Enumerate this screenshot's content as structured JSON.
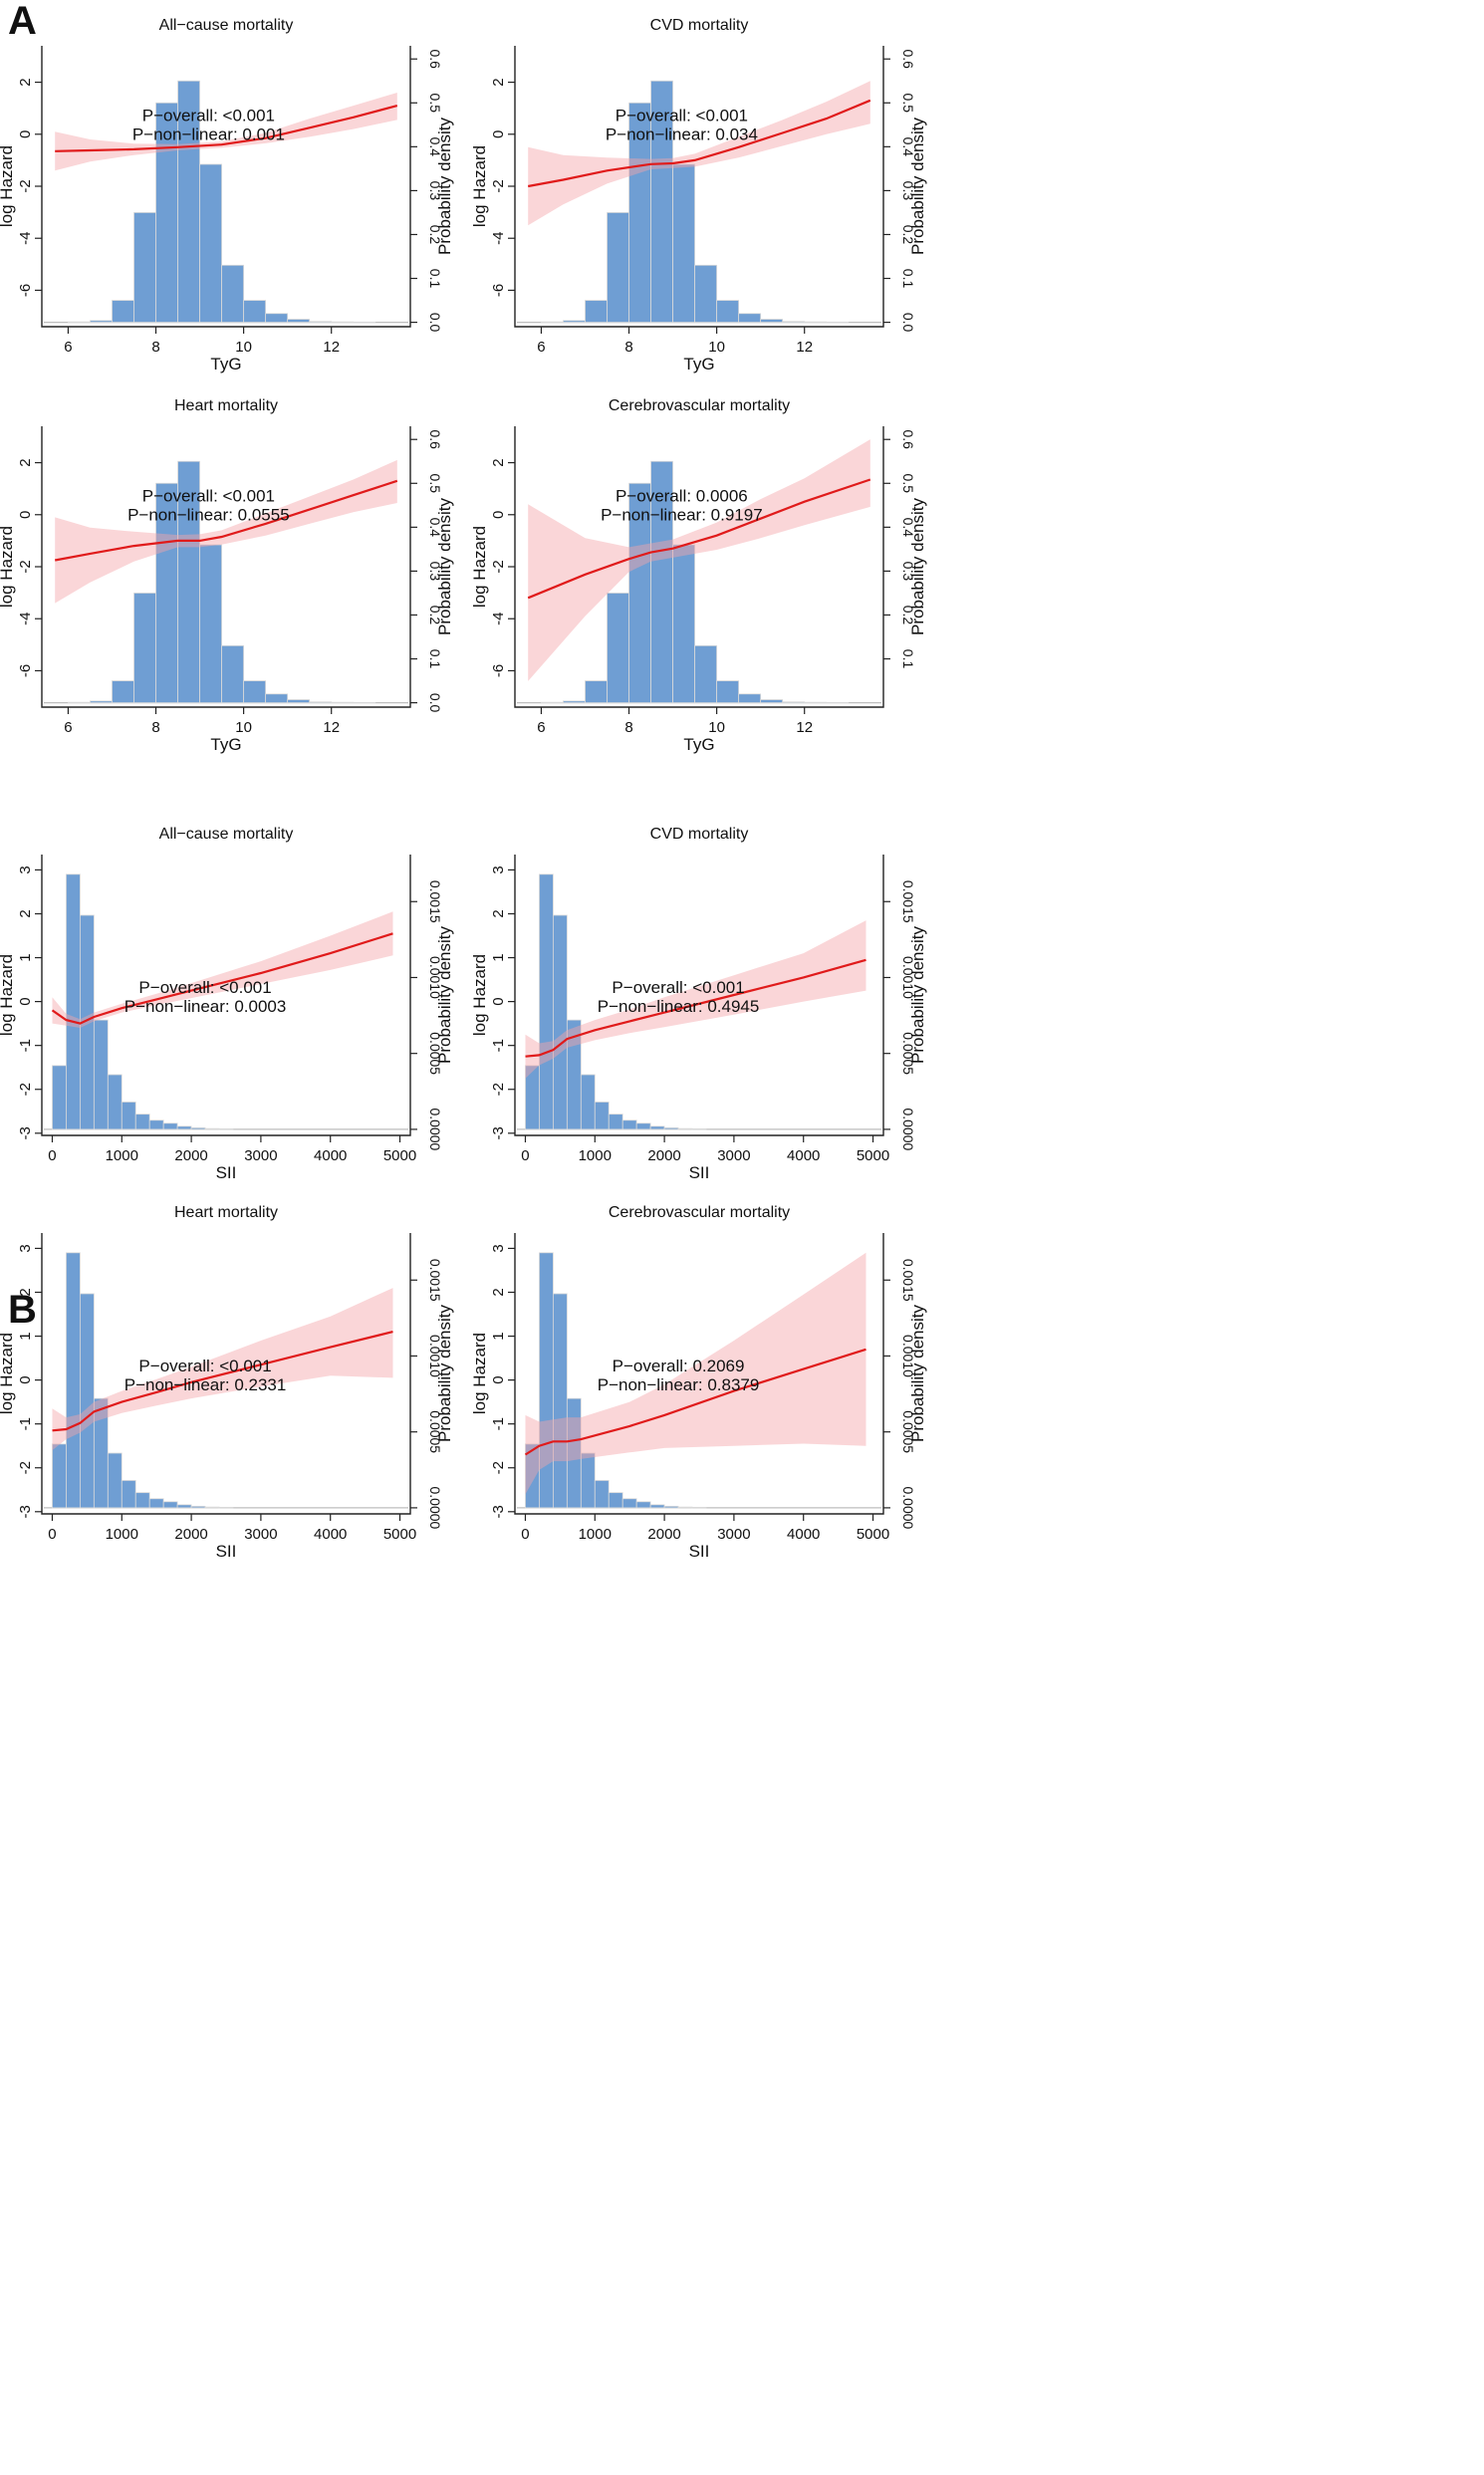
{
  "panels": [
    {
      "letter": "A",
      "xlabel": "TyG"
    },
    {
      "letter": "B",
      "xlabel": "SII"
    }
  ],
  "chart_data": [
    {
      "type": "line",
      "panel": "A",
      "title": "All−cause mortality",
      "xlabel": "TyG",
      "ylabel": "log Hazard",
      "y2label": "Probability density",
      "xlim": [
        5.4,
        13.8
      ],
      "xticks": [
        6,
        8,
        10,
        12
      ],
      "ylim": [
        -7.4,
        3.4
      ],
      "yticks": [
        -6,
        -4,
        -2,
        0,
        2
      ],
      "y2lim": [
        -0.01,
        0.63
      ],
      "y2ticks": [
        "0.0",
        "0.1",
        "0.2",
        "0.3",
        "0.4",
        "0.5",
        "0.6"
      ],
      "histogram": {
        "bin_width": 0.5,
        "bin_starts": [
          6.0,
          6.5,
          7.0,
          7.5,
          8.0,
          8.5,
          9.0,
          9.5,
          10.0,
          10.5,
          11.0,
          11.5,
          12.0,
          12.5
        ],
        "density": [
          0.001,
          0.004,
          0.05,
          0.25,
          0.5,
          0.55,
          0.36,
          0.13,
          0.05,
          0.02,
          0.007,
          0.002,
          0.001,
          0.0005
        ]
      },
      "curve": {
        "x": [
          5.7,
          6.5,
          7.5,
          8.5,
          9.5,
          10.5,
          11.5,
          12.5,
          13.5
        ],
        "y": [
          -0.65,
          -0.62,
          -0.58,
          -0.5,
          -0.4,
          -0.15,
          0.25,
          0.65,
          1.1
        ],
        "lower": [
          -1.4,
          -1.05,
          -0.8,
          -0.62,
          -0.52,
          -0.35,
          -0.1,
          0.2,
          0.55
        ],
        "upper": [
          0.1,
          -0.2,
          -0.36,
          -0.38,
          -0.28,
          0.05,
          0.6,
          1.1,
          1.6
        ]
      },
      "annotations": [
        "P−overall: <0.001",
        "P−non−linear: 0.001"
      ],
      "annotation_anchor": [
        9.2,
        0.5
      ]
    },
    {
      "type": "line",
      "panel": "A",
      "title": "CVD mortality",
      "xlabel": "TyG",
      "ylabel": "log Hazard",
      "y2label": "Probability density",
      "xlim": [
        5.4,
        13.8
      ],
      "xticks": [
        6,
        8,
        10,
        12
      ],
      "ylim": [
        -7.4,
        3.4
      ],
      "yticks": [
        -6,
        -4,
        -2,
        0,
        2
      ],
      "y2lim": [
        -0.01,
        0.63
      ],
      "y2ticks": [
        "0.0",
        "0.1",
        "0.2",
        "0.3",
        "0.4",
        "0.5",
        "0.6"
      ],
      "histogram": {
        "bin_width": 0.5,
        "bin_starts": [
          6.0,
          6.5,
          7.0,
          7.5,
          8.0,
          8.5,
          9.0,
          9.5,
          10.0,
          10.5,
          11.0,
          11.5,
          12.0,
          12.5
        ],
        "density": [
          0.001,
          0.004,
          0.05,
          0.25,
          0.5,
          0.55,
          0.36,
          0.13,
          0.05,
          0.02,
          0.007,
          0.002,
          0.001,
          0.0005
        ]
      },
      "curve": {
        "x": [
          5.7,
          6.5,
          7.5,
          8.5,
          9.0,
          9.5,
          10.5,
          11.5,
          12.5,
          13.5
        ],
        "y": [
          -2.0,
          -1.75,
          -1.4,
          -1.15,
          -1.12,
          -1.0,
          -0.5,
          0.05,
          0.6,
          1.3
        ],
        "lower": [
          -3.5,
          -2.7,
          -1.9,
          -1.35,
          -1.3,
          -1.25,
          -0.9,
          -0.45,
          0.0,
          0.4
        ],
        "upper": [
          -0.5,
          -0.8,
          -0.9,
          -0.95,
          -0.92,
          -0.75,
          -0.1,
          0.55,
          1.25,
          2.05
        ]
      },
      "annotations": [
        "P−overall: <0.001",
        "P−non−linear: 0.034"
      ],
      "annotation_anchor": [
        9.2,
        0.5
      ]
    },
    {
      "type": "line",
      "panel": "A",
      "title": "Heart mortality",
      "xlabel": "TyG",
      "ylabel": "log Hazard",
      "y2label": "Probability density",
      "xlim": [
        5.4,
        13.8
      ],
      "xticks": [
        6,
        8,
        10,
        12
      ],
      "ylim": [
        -7.4,
        3.4
      ],
      "yticks": [
        -6,
        -4,
        -2,
        0,
        2
      ],
      "y2lim": [
        -0.01,
        0.63
      ],
      "y2ticks": [
        "0.0",
        "0.1",
        "0.2",
        "0.3",
        "0.4",
        "0.5",
        "0.6"
      ],
      "histogram": {
        "bin_width": 0.5,
        "bin_starts": [
          6.0,
          6.5,
          7.0,
          7.5,
          8.0,
          8.5,
          9.0,
          9.5,
          10.0,
          10.5,
          11.0,
          11.5,
          12.0,
          12.5
        ],
        "density": [
          0.001,
          0.004,
          0.05,
          0.25,
          0.5,
          0.55,
          0.36,
          0.13,
          0.05,
          0.02,
          0.007,
          0.002,
          0.001,
          0.0005
        ]
      },
      "curve": {
        "x": [
          5.7,
          6.5,
          7.5,
          8.5,
          9.0,
          9.5,
          10.5,
          11.5,
          12.5,
          13.5
        ],
        "y": [
          -1.75,
          -1.5,
          -1.2,
          -1.0,
          -1.0,
          -0.85,
          -0.35,
          0.2,
          0.75,
          1.3
        ],
        "lower": [
          -3.4,
          -2.6,
          -1.8,
          -1.25,
          -1.25,
          -1.15,
          -0.8,
          -0.35,
          0.1,
          0.45
        ],
        "upper": [
          -0.1,
          -0.5,
          -0.65,
          -0.78,
          -0.75,
          -0.6,
          0.05,
          0.7,
          1.35,
          2.1
        ]
      },
      "annotations": [
        "P−overall: <0.001",
        "P−non−linear: 0.0555"
      ],
      "annotation_anchor": [
        9.2,
        0.5
      ]
    },
    {
      "type": "line",
      "panel": "A",
      "title": "Cerebrovascular mortality",
      "xlabel": "TyG",
      "ylabel": "log Hazard",
      "y2label": "Probability density",
      "xlim": [
        5.4,
        13.8
      ],
      "xticks": [
        6,
        8,
        10,
        12
      ],
      "ylim": [
        -7.4,
        3.4
      ],
      "yticks": [
        -6,
        -4,
        -2,
        0,
        2
      ],
      "y2lim": [
        -0.01,
        0.63
      ],
      "y2ticks": [
        "0.1",
        "0.2",
        "0.3",
        "0.4",
        "0.5",
        "0.6"
      ],
      "histogram": {
        "bin_width": 0.5,
        "bin_starts": [
          6.0,
          6.5,
          7.0,
          7.5,
          8.0,
          8.5,
          9.0,
          9.5,
          10.0,
          10.5,
          11.0,
          11.5,
          12.0,
          12.5
        ],
        "density": [
          0.001,
          0.004,
          0.05,
          0.25,
          0.5,
          0.55,
          0.36,
          0.13,
          0.05,
          0.02,
          0.007,
          0.002,
          0.001,
          0.0005
        ]
      },
      "curve": {
        "x": [
          5.7,
          7.0,
          8.0,
          8.5,
          9.0,
          10.0,
          11.0,
          12.0,
          13.5
        ],
        "y": [
          -3.2,
          -2.3,
          -1.7,
          -1.45,
          -1.3,
          -0.8,
          -0.15,
          0.5,
          1.35
        ],
        "lower": [
          -6.4,
          -3.9,
          -2.2,
          -1.8,
          -1.65,
          -1.35,
          -0.9,
          -0.4,
          0.3
        ],
        "upper": [
          0.4,
          -0.9,
          -1.25,
          -1.1,
          -0.95,
          -0.3,
          0.6,
          1.4,
          2.9
        ]
      },
      "annotations": [
        "P−overall: 0.0006",
        "P−non−linear: 0.9197"
      ],
      "annotation_anchor": [
        9.2,
        0.5
      ]
    },
    {
      "type": "line",
      "panel": "B",
      "title": "All−cause mortality",
      "xlabel": "SII",
      "ylabel": "log Hazard",
      "y2label": "Probability density",
      "xlim": [
        -150,
        5150
      ],
      "xticks": [
        0,
        1000,
        2000,
        3000,
        4000,
        5000
      ],
      "ylim": [
        -3.05,
        3.35
      ],
      "yticks": [
        -3,
        -2,
        -1,
        0,
        1,
        2,
        3
      ],
      "y2lim": [
        -4e-05,
        0.00181
      ],
      "y2ticks": [
        "0.0000",
        "0.0005",
        "0.0010",
        "0.0015"
      ],
      "histogram": {
        "bin_width": 200,
        "bin_starts": [
          0,
          200,
          400,
          600,
          800,
          1000,
          1200,
          1400,
          1600,
          1800,
          2000,
          2200,
          2400
        ],
        "density": [
          0.00042,
          0.00168,
          0.00141,
          0.00072,
          0.00036,
          0.00018,
          0.0001,
          6e-05,
          4e-05,
          2e-05,
          1e-05,
          5e-06,
          3e-06
        ]
      },
      "curve": {
        "x": [
          0,
          200,
          400,
          600,
          1000,
          1500,
          2000,
          3000,
          4000,
          4900
        ],
        "y": [
          -0.2,
          -0.42,
          -0.5,
          -0.35,
          -0.15,
          0.05,
          0.25,
          0.65,
          1.1,
          1.55
        ],
        "lower": [
          -0.5,
          -0.55,
          -0.6,
          -0.45,
          -0.25,
          -0.08,
          0.08,
          0.4,
          0.72,
          1.05
        ],
        "upper": [
          0.1,
          -0.28,
          -0.4,
          -0.25,
          -0.05,
          0.18,
          0.42,
          0.92,
          1.5,
          2.05
        ]
      },
      "annotations": [
        "P−overall: <0.001",
        "P−non−linear: 0.0003"
      ],
      "annotation_anchor": [
        2200,
        0.2
      ]
    },
    {
      "type": "line",
      "panel": "B",
      "title": "CVD mortality",
      "xlabel": "SII",
      "ylabel": "log Hazard",
      "y2label": "Probability density",
      "xlim": [
        -150,
        5150
      ],
      "xticks": [
        0,
        1000,
        2000,
        3000,
        4000,
        5000
      ],
      "ylim": [
        -3.05,
        3.35
      ],
      "yticks": [
        -3,
        -2,
        -1,
        0,
        1,
        2,
        3
      ],
      "y2lim": [
        -4e-05,
        0.00181
      ],
      "y2ticks": [
        "0.0000",
        "0.0005",
        "0.0010",
        "0.0015"
      ],
      "histogram": {
        "bin_width": 200,
        "bin_starts": [
          0,
          200,
          400,
          600,
          800,
          1000,
          1200,
          1400,
          1600,
          1800,
          2000,
          2200,
          2400
        ],
        "density": [
          0.00042,
          0.00168,
          0.00141,
          0.00072,
          0.00036,
          0.00018,
          0.0001,
          6e-05,
          4e-05,
          2e-05,
          1e-05,
          5e-06,
          3e-06
        ]
      },
      "curve": {
        "x": [
          0,
          200,
          400,
          600,
          1000,
          1500,
          2000,
          3000,
          4000,
          4900
        ],
        "y": [
          -1.25,
          -1.22,
          -1.1,
          -0.85,
          -0.65,
          -0.45,
          -0.25,
          0.15,
          0.55,
          0.95
        ],
        "lower": [
          -1.75,
          -1.45,
          -1.3,
          -1.05,
          -0.88,
          -0.72,
          -0.58,
          -0.3,
          0.0,
          0.25
        ],
        "upper": [
          -0.75,
          -0.95,
          -0.9,
          -0.65,
          -0.42,
          -0.18,
          0.1,
          0.6,
          1.1,
          1.85
        ]
      },
      "annotations": [
        "P−overall: <0.001",
        "P−non−linear: 0.4945"
      ],
      "annotation_anchor": [
        2200,
        0.2
      ]
    },
    {
      "type": "line",
      "panel": "B",
      "title": "Heart mortality",
      "xlabel": "SII",
      "ylabel": "log Hazard",
      "y2label": "Probability density",
      "xlim": [
        -150,
        5150
      ],
      "xticks": [
        0,
        1000,
        2000,
        3000,
        4000,
        5000
      ],
      "ylim": [
        -3.05,
        3.35
      ],
      "yticks": [
        -3,
        -2,
        -1,
        0,
        1,
        2,
        3
      ],
      "y2lim": [
        -4e-05,
        0.00181
      ],
      "y2ticks": [
        "0.0000",
        "0.0005",
        "0.0010",
        "0.0015"
      ],
      "histogram": {
        "bin_width": 200,
        "bin_starts": [
          0,
          200,
          400,
          600,
          800,
          1000,
          1200,
          1400,
          1600,
          1800,
          2000,
          2200,
          2400
        ],
        "density": [
          0.00042,
          0.00168,
          0.00141,
          0.00072,
          0.00036,
          0.00018,
          0.0001,
          6e-05,
          4e-05,
          2e-05,
          1e-05,
          5e-06,
          3e-06
        ]
      },
      "curve": {
        "x": [
          0,
          200,
          400,
          600,
          1000,
          1500,
          2000,
          3000,
          4000,
          4900
        ],
        "y": [
          -1.15,
          -1.12,
          -0.98,
          -0.72,
          -0.5,
          -0.28,
          -0.05,
          0.35,
          0.75,
          1.1
        ],
        "lower": [
          -1.6,
          -1.35,
          -1.2,
          -0.95,
          -0.75,
          -0.58,
          -0.42,
          -0.15,
          0.1,
          0.05
        ],
        "upper": [
          -0.65,
          -0.85,
          -0.78,
          -0.5,
          -0.25,
          0.02,
          0.3,
          0.9,
          1.45,
          2.1
        ]
      },
      "annotations": [
        "P−overall: <0.001",
        "P−non−linear: 0.2331"
      ],
      "annotation_anchor": [
        2200,
        0.2
      ]
    },
    {
      "type": "line",
      "panel": "B",
      "title": "Cerebrovascular mortality",
      "xlabel": "SII",
      "ylabel": "log Hazard",
      "y2label": "Probability density",
      "xlim": [
        -150,
        5150
      ],
      "xticks": [
        0,
        1000,
        2000,
        3000,
        4000,
        5000
      ],
      "ylim": [
        -3.05,
        3.35
      ],
      "yticks": [
        -3,
        -2,
        -1,
        0,
        1,
        2,
        3
      ],
      "y2lim": [
        -4e-05,
        0.00181
      ],
      "y2ticks": [
        "0.0000",
        "0.0005",
        "0.0010",
        "0.0015"
      ],
      "histogram": {
        "bin_width": 200,
        "bin_starts": [
          0,
          200,
          400,
          600,
          800,
          1000,
          1200,
          1400,
          1600,
          1800,
          2000,
          2200,
          2400
        ],
        "density": [
          0.00042,
          0.00168,
          0.00141,
          0.00072,
          0.00036,
          0.00018,
          0.0001,
          6e-05,
          4e-05,
          2e-05,
          1e-05,
          5e-06,
          3e-06
        ]
      },
      "curve": {
        "x": [
          0,
          200,
          400,
          600,
          800,
          1500,
          2000,
          3000,
          4000,
          4900
        ],
        "y": [
          -1.7,
          -1.5,
          -1.4,
          -1.4,
          -1.35,
          -1.05,
          -0.8,
          -0.25,
          0.25,
          0.7
        ],
        "lower": [
          -2.6,
          -2.05,
          -1.85,
          -1.85,
          -1.8,
          -1.65,
          -1.55,
          -1.5,
          -1.45,
          -1.5
        ],
        "upper": [
          -0.8,
          -0.95,
          -0.9,
          -0.85,
          -0.85,
          -0.5,
          -0.1,
          0.9,
          1.95,
          2.9
        ]
      },
      "annotations": [
        "P−overall: 0.2069",
        "P−non−linear: 0.8379"
      ],
      "annotation_anchor": [
        2200,
        0.2
      ]
    }
  ]
}
